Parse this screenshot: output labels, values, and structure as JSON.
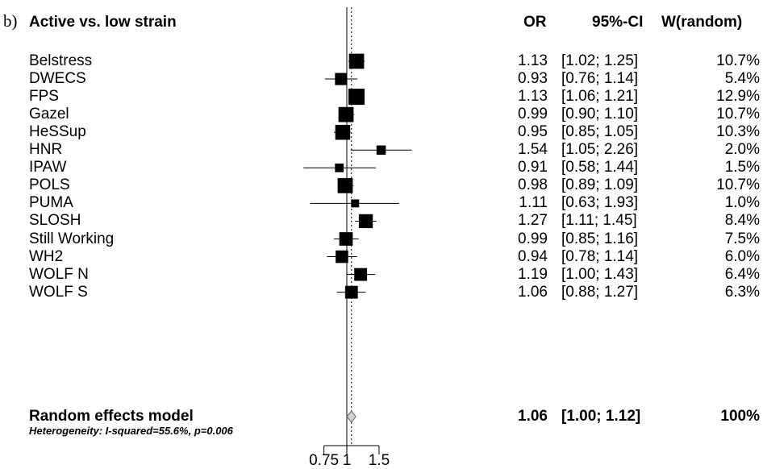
{
  "panel_label": "b)",
  "headers": {
    "title": "Active vs. low strain",
    "or": "OR",
    "ci": "95%-CI",
    "weight": "W(random)"
  },
  "heterogeneity": "Heterogeneity: I-squared=55.6%, p=0.006",
  "chart_data": {
    "type": "forest",
    "title": "Active vs. low strain",
    "xscale": "log",
    "xticks": [
      "0.75",
      "1",
      "1.5"
    ],
    "reference_line": 1,
    "pooled_line": 1.06,
    "studies": [
      {
        "name": "Belstress",
        "or": 1.13,
        "lo": 1.02,
        "hi": 1.25,
        "or_text": "1.13",
        "ci_text": "[1.02; 1.25]",
        "w": 10.7,
        "w_text": "10.7%"
      },
      {
        "name": "DWECS",
        "or": 0.93,
        "lo": 0.76,
        "hi": 1.14,
        "or_text": "0.93",
        "ci_text": "[0.76; 1.14]",
        "w": 5.4,
        "w_text": "5.4%"
      },
      {
        "name": "FPS",
        "or": 1.13,
        "lo": 1.06,
        "hi": 1.21,
        "or_text": "1.13",
        "ci_text": "[1.06; 1.21]",
        "w": 12.9,
        "w_text": "12.9%"
      },
      {
        "name": "Gazel",
        "or": 0.99,
        "lo": 0.9,
        "hi": 1.1,
        "or_text": "0.99",
        "ci_text": "[0.90; 1.10]",
        "w": 10.7,
        "w_text": "10.7%"
      },
      {
        "name": "HeSSup",
        "or": 0.95,
        "lo": 0.85,
        "hi": 1.05,
        "or_text": "0.95",
        "ci_text": "[0.85; 1.05]",
        "w": 10.3,
        "w_text": "10.3%"
      },
      {
        "name": "HNR",
        "or": 1.54,
        "lo": 1.05,
        "hi": 2.26,
        "or_text": "1.54",
        "ci_text": "[1.05; 2.26]",
        "w": 2.0,
        "w_text": "2.0%"
      },
      {
        "name": "IPAW",
        "or": 0.91,
        "lo": 0.58,
        "hi": 1.44,
        "or_text": "0.91",
        "ci_text": "[0.58; 1.44]",
        "w": 1.5,
        "w_text": "1.5%"
      },
      {
        "name": "POLS",
        "or": 0.98,
        "lo": 0.89,
        "hi": 1.09,
        "or_text": "0.98",
        "ci_text": "[0.89; 1.09]",
        "w": 10.7,
        "w_text": "10.7%"
      },
      {
        "name": "PUMA",
        "or": 1.11,
        "lo": 0.63,
        "hi": 1.93,
        "or_text": "1.11",
        "ci_text": "[0.63; 1.93]",
        "w": 1.0,
        "w_text": "1.0%"
      },
      {
        "name": "SLOSH",
        "or": 1.27,
        "lo": 1.11,
        "hi": 1.45,
        "or_text": "1.27",
        "ci_text": "[1.11; 1.45]",
        "w": 8.4,
        "w_text": "8.4%"
      },
      {
        "name": "Still Working",
        "or": 0.99,
        "lo": 0.85,
        "hi": 1.16,
        "or_text": "0.99",
        "ci_text": "[0.85; 1.16]",
        "w": 7.5,
        "w_text": "7.5%"
      },
      {
        "name": "WH2",
        "or": 0.94,
        "lo": 0.78,
        "hi": 1.14,
        "or_text": "0.94",
        "ci_text": "[0.78; 1.14]",
        "w": 6.0,
        "w_text": "6.0%"
      },
      {
        "name": "WOLF N",
        "or": 1.19,
        "lo": 1.0,
        "hi": 1.43,
        "or_text": "1.19",
        "ci_text": "[1.00; 1.43]",
        "w": 6.4,
        "w_text": "6.4%"
      },
      {
        "name": "WOLF S",
        "or": 1.06,
        "lo": 0.88,
        "hi": 1.27,
        "or_text": "1.06",
        "ci_text": "[0.88; 1.27]",
        "w": 6.3,
        "w_text": "6.3%"
      }
    ],
    "pooled": {
      "name": "Random effects model",
      "or": 1.06,
      "lo": 1.0,
      "hi": 1.12,
      "or_text": "1.06",
      "ci_text": "[1.00; 1.12]",
      "w_text": "100%"
    },
    "colors": {
      "marker": "#000000",
      "diamond_fill": "#d3d3d3",
      "diamond_stroke": "#606060"
    }
  }
}
